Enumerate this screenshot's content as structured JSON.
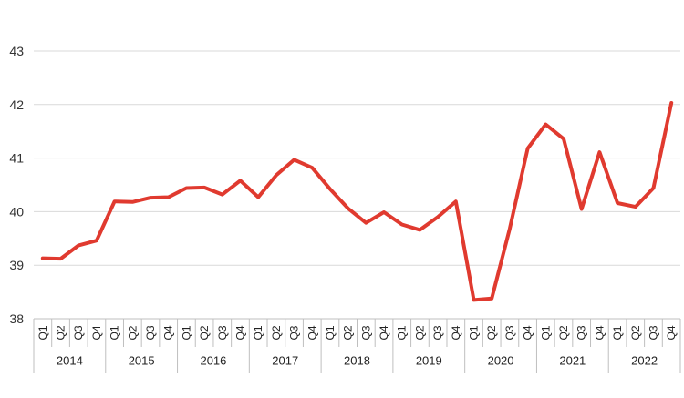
{
  "chart_data": {
    "type": "line",
    "title": "",
    "xlabel": "",
    "ylabel": "",
    "ylim": [
      38,
      43
    ],
    "yticks": [
      "38",
      "39",
      "40",
      "41",
      "42",
      "43"
    ],
    "grid": true,
    "legend": "none",
    "quarter_labels": [
      "Q1",
      "Q2",
      "Q3",
      "Q4"
    ],
    "years": [
      "2014",
      "2015",
      "2016",
      "2017",
      "2018",
      "2019",
      "2020",
      "2021",
      "2022"
    ],
    "series": [
      {
        "color": "#e03a2f",
        "values": [
          39.13,
          39.12,
          39.37,
          39.46,
          40.19,
          40.18,
          40.26,
          40.27,
          40.44,
          40.45,
          40.32,
          40.58,
          40.27,
          40.68,
          40.97,
          40.82,
          40.42,
          40.06,
          39.79,
          39.99,
          39.76,
          39.66,
          39.9,
          40.19,
          38.35,
          38.38,
          39.68,
          41.18,
          41.63,
          41.36,
          40.05,
          41.11,
          40.16,
          40.09,
          40.44,
          42.03
        ]
      }
    ]
  }
}
